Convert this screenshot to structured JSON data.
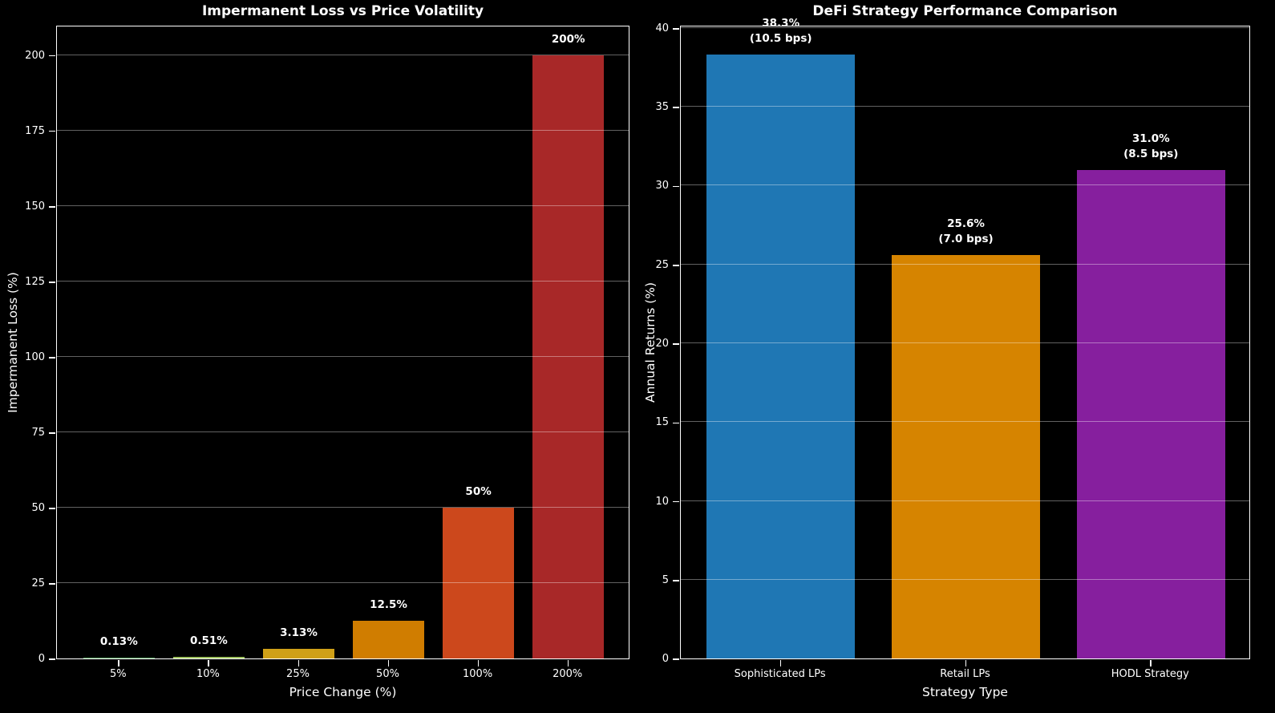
{
  "page": {
    "background_color": "#000000",
    "text_color": "#ffffff",
    "grid_color": "rgba(255,255,255,0.38)",
    "spine_color": "#ffffff"
  },
  "chart_data": [
    {
      "type": "bar",
      "title": "Impermanent Loss vs Price Volatility",
      "xlabel": "Price Change (%)",
      "ylabel": "Impermanent Loss (%)",
      "categories": [
        "5%",
        "10%",
        "25%",
        "50%",
        "100%",
        "200%"
      ],
      "values": [
        0.13,
        0.51,
        3.13,
        12.5,
        50,
        200
      ],
      "bar_labels": [
        [
          "0.13%"
        ],
        [
          "0.51%"
        ],
        [
          "3.13%"
        ],
        [
          "12.5%"
        ],
        [
          "50%"
        ],
        [
          "200%"
        ]
      ],
      "bar_colors": [
        "#57a25f",
        "#9fc35e",
        "#cfa018",
        "#d07d00",
        "#cc481c",
        "#a82828"
      ],
      "yticks": [
        0,
        25,
        50,
        75,
        100,
        125,
        150,
        175,
        200
      ],
      "ylim": [
        0,
        210
      ],
      "grid": true,
      "legend": "none"
    },
    {
      "type": "bar",
      "title": "DeFi Strategy Performance Comparison",
      "xlabel": "Strategy Type",
      "ylabel": "Annual Returns (%)",
      "categories": [
        "Sophisticated LPs",
        "Retail LPs",
        "HODL Strategy"
      ],
      "values": [
        38.3,
        25.6,
        31.0
      ],
      "bar_labels": [
        [
          "38.3%",
          "(10.5 bps)"
        ],
        [
          "25.6%",
          "(7.0 bps)"
        ],
        [
          "31.0%",
          "(8.5 bps)"
        ]
      ],
      "bar_colors": [
        "#1f77b4",
        "#d68400",
        "#861f9e"
      ],
      "yticks": [
        0,
        5,
        10,
        15,
        20,
        25,
        30,
        35,
        40
      ],
      "ylim": [
        0,
        40.2
      ],
      "grid": true,
      "legend": "none"
    }
  ]
}
